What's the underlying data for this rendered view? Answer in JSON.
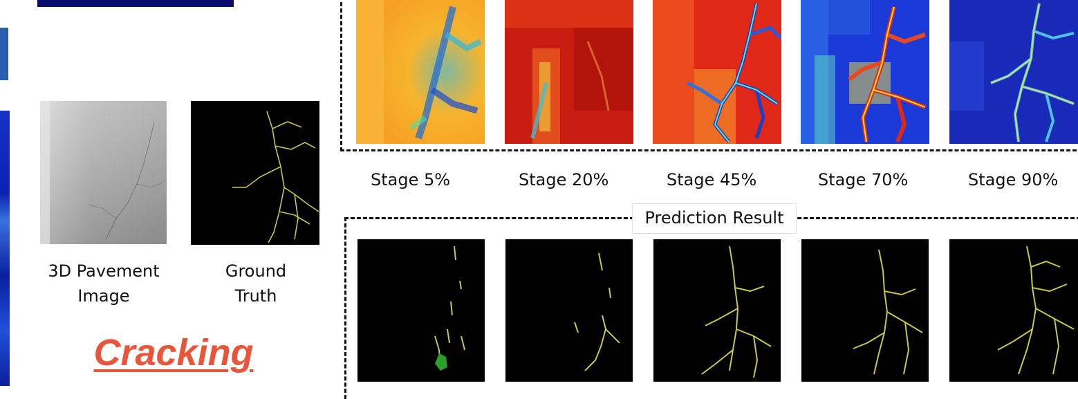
{
  "left_panel": {
    "input_caption_line1": "3D Pavement",
    "input_caption_line2": "Image",
    "gt_caption_line1": "Ground",
    "gt_caption_line2": "Truth",
    "category_label": "Cracking",
    "category_color": "#e8553a"
  },
  "stages": [
    {
      "label": "Stage 5%"
    },
    {
      "label": "Stage 20%"
    },
    {
      "label": "Stage 45%"
    },
    {
      "label": "Stage 70%"
    },
    {
      "label": "Stage 90%"
    }
  ],
  "prediction_section": {
    "title": "Prediction Result"
  },
  "colors": {
    "header_bar": "#0a0a6a",
    "crack_yellow": "#c8c84a",
    "crack_green": "#2aa02a"
  }
}
